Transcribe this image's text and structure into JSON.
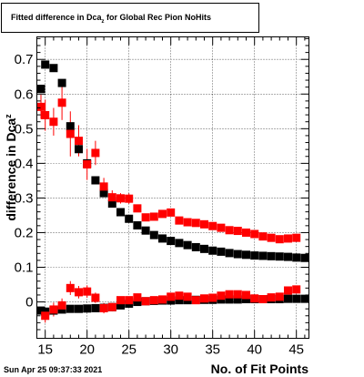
{
  "chart_data": {
    "type": "scatter",
    "title_main": "Fitted difference in Dca",
    "title_sub": "z",
    "title_rest": " for Global Rec Pion NoHits",
    "xlabel": "No. of Fit Points",
    "ylabel_main": "difference in Dca",
    "ylabel_sub": "z",
    "timestamp": "Sun Apr 25 09:37:33 2021",
    "xlim": [
      14,
      46.5
    ],
    "ylim": [
      -0.105,
      0.765
    ],
    "x_ticks": [
      15,
      20,
      25,
      30,
      35,
      40,
      45
    ],
    "y_ticks": [
      0,
      0.1,
      0.2,
      0.3,
      0.4,
      0.5,
      0.6,
      0.7
    ],
    "x_tick_labels": [
      "15",
      "20",
      "25",
      "30",
      "35",
      "40",
      "45"
    ],
    "y_tick_labels": [
      "0",
      "0.1",
      "0.2",
      "0.3",
      "0.4",
      "0.5",
      "0.6",
      "0.7"
    ],
    "grid": true,
    "marker_shape": "square",
    "series": [
      {
        "color": "#000000",
        "x": [
          14,
          15,
          16,
          17,
          18,
          19,
          20,
          21,
          22,
          23,
          24,
          25,
          26,
          27,
          28,
          29,
          30,
          31,
          32,
          33,
          34,
          35,
          36,
          37,
          38,
          39,
          40,
          41,
          42,
          43,
          44,
          45,
          46
        ],
        "y": [
          0.615,
          0.685,
          0.675,
          0.632,
          0.507,
          0.441,
          0.4,
          0.351,
          0.314,
          0.284,
          0.259,
          0.24,
          0.221,
          0.206,
          0.193,
          0.183,
          0.176,
          0.17,
          0.164,
          0.158,
          0.153,
          0.148,
          0.145,
          0.141,
          0.138,
          0.136,
          0.134,
          0.133,
          0.132,
          0.131,
          0.13,
          0.128,
          0.127
        ],
        "err": [
          0.012,
          0.008,
          0.008,
          0.008,
          0.008,
          0.008,
          0.008,
          0.006,
          0.006,
          0.006,
          0.005,
          0.005,
          0.004,
          0.004,
          0.004,
          0.003,
          0.003,
          0.003,
          0.003,
          0.003,
          0.003,
          0.003,
          0.003,
          0.003,
          0.003,
          0.003,
          0.003,
          0.003,
          0.003,
          0.003,
          0.003,
          0.003,
          0.003
        ]
      },
      {
        "color": "#ff0000",
        "x": [
          14,
          15,
          16,
          17,
          18,
          19,
          20,
          21,
          22,
          23,
          24,
          25,
          26,
          27,
          28,
          29,
          30,
          31,
          32,
          33,
          34,
          35,
          36,
          37,
          38,
          39,
          40,
          41,
          42,
          43,
          44,
          45
        ],
        "y": [
          0.563,
          0.539,
          0.52,
          0.575,
          0.485,
          0.465,
          0.397,
          0.43,
          0.333,
          0.302,
          0.299,
          0.298,
          0.27,
          0.244,
          0.246,
          0.254,
          0.258,
          0.235,
          0.23,
          0.228,
          0.224,
          0.219,
          0.214,
          0.207,
          0.205,
          0.2,
          0.196,
          0.189,
          0.185,
          0.181,
          0.183,
          0.185
        ],
        "err": [
          0.035,
          0.045,
          0.04,
          0.05,
          0.065,
          0.045,
          0.045,
          0.035,
          0.025,
          0.02,
          0.015,
          0.015,
          0.01,
          0.01,
          0.008,
          0.008,
          0.008,
          0.006,
          0.006,
          0.006,
          0.006,
          0.006,
          0.006,
          0.006,
          0.006,
          0.006,
          0.006,
          0.006,
          0.006,
          0.006,
          0.006,
          0.006
        ]
      },
      {
        "color": "#000000",
        "x": [
          14,
          15,
          16,
          17,
          18,
          19,
          20,
          21,
          22,
          23,
          24,
          25,
          26,
          27,
          28,
          29,
          30,
          31,
          32,
          33,
          34,
          35,
          36,
          37,
          38,
          39,
          40,
          41,
          42,
          43,
          44,
          45,
          46
        ],
        "y": [
          -0.025,
          -0.028,
          -0.025,
          -0.022,
          -0.02,
          -0.02,
          -0.019,
          -0.018,
          -0.017,
          -0.015,
          -0.01,
          -0.005,
          0.0,
          0.002,
          0.003,
          0.004,
          0.004,
          0.005,
          0.005,
          0.006,
          0.006,
          0.006,
          0.007,
          0.007,
          0.007,
          0.008,
          0.008,
          0.008,
          0.008,
          0.008,
          0.009,
          0.009,
          0.009
        ],
        "err": [
          0.006,
          0.005,
          0.005,
          0.005,
          0.004,
          0.004,
          0.004,
          0.004,
          0.004,
          0.004,
          0.004,
          0.003,
          0.003,
          0.003,
          0.003,
          0.003,
          0.003,
          0.003,
          0.003,
          0.003,
          0.003,
          0.003,
          0.003,
          0.003,
          0.003,
          0.003,
          0.003,
          0.003,
          0.003,
          0.003,
          0.003,
          0.003,
          0.003
        ]
      },
      {
        "color": "#ff0000",
        "x": [
          15,
          16,
          17,
          18,
          19,
          20,
          21,
          22,
          23,
          24,
          25,
          26,
          27,
          28,
          29,
          30,
          31,
          32,
          33,
          34,
          35,
          36,
          37,
          38,
          39,
          40,
          41,
          42,
          43,
          44,
          45
        ],
        "y": [
          -0.04,
          -0.022,
          -0.01,
          0.04,
          0.028,
          0.03,
          0.012,
          -0.018,
          -0.015,
          0.005,
          0.005,
          0.013,
          0.002,
          0.005,
          0.007,
          0.015,
          0.018,
          0.015,
          0.005,
          0.01,
          0.012,
          0.018,
          0.022,
          0.022,
          0.02,
          0.01,
          0.008,
          0.013,
          0.015,
          0.033,
          0.036
        ],
        "err": [
          0.02,
          0.02,
          0.02,
          0.02,
          0.018,
          0.018,
          0.015,
          0.015,
          0.012,
          0.01,
          0.01,
          0.01,
          0.008,
          0.008,
          0.008,
          0.008,
          0.008,
          0.008,
          0.008,
          0.008,
          0.008,
          0.008,
          0.008,
          0.008,
          0.008,
          0.008,
          0.008,
          0.008,
          0.008,
          0.008,
          0.008
        ]
      }
    ]
  }
}
